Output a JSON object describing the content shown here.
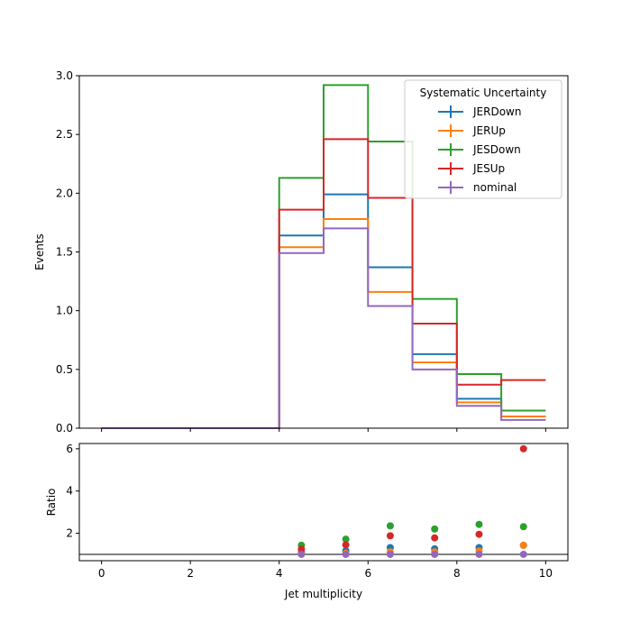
{
  "chart_data": [
    {
      "type": "line",
      "panel": "top",
      "drawstyle": "steps",
      "xlabel": "",
      "ylabel": "Events",
      "xlim": [
        -0.5,
        10.5
      ],
      "ylim": [
        0,
        3.0
      ],
      "yticks": [
        "0.0",
        "0.5",
        "1.0",
        "1.5",
        "2.0",
        "2.5",
        "3.0"
      ],
      "xticks": [
        0,
        2,
        4,
        6,
        8,
        10
      ],
      "bin_edges": [
        0,
        1,
        2,
        3,
        4,
        5,
        6,
        7,
        8,
        9,
        10
      ],
      "legend_title": "Systematic Uncertainty",
      "legend_position": "top-right",
      "series": [
        {
          "name": "JERDown",
          "color": "#1f77b4",
          "values": [
            0,
            0,
            0,
            0,
            1.64,
            1.99,
            1.37,
            0.63,
            0.25,
            0.1
          ]
        },
        {
          "name": "JERUp",
          "color": "#ff7f0e",
          "values": [
            0,
            0,
            0,
            0,
            1.54,
            1.78,
            1.16,
            0.56,
            0.22,
            0.1
          ]
        },
        {
          "name": "JESDown",
          "color": "#2ca02c",
          "values": [
            0,
            0,
            0,
            0,
            2.13,
            2.92,
            2.44,
            1.1,
            0.46,
            0.15
          ]
        },
        {
          "name": "JESUp",
          "color": "#d62728",
          "values": [
            0,
            0,
            0,
            0,
            1.86,
            2.46,
            1.96,
            0.89,
            0.37,
            0.41
          ]
        },
        {
          "name": "nominal",
          "color": "#9467bd",
          "values": [
            0,
            0,
            0,
            0,
            1.49,
            1.7,
            1.04,
            0.5,
            0.19,
            0.07
          ]
        }
      ]
    },
    {
      "type": "scatter",
      "panel": "bottom",
      "xlabel": "Jet multiplicity",
      "ylabel": "Ratio",
      "xlim": [
        -0.5,
        10.5
      ],
      "ylim": [
        0.7,
        6.25
      ],
      "yticks": [
        "2",
        "4",
        "6"
      ],
      "xticks": [
        "0",
        "2",
        "4",
        "6",
        "8",
        "10"
      ],
      "reference_line": 1,
      "x": [
        4.5,
        5.5,
        6.5,
        7.5,
        8.5,
        9.5
      ],
      "series": [
        {
          "name": "JERDown",
          "color": "#1f77b4",
          "values": [
            1.1,
            1.17,
            1.32,
            1.26,
            1.32,
            1.43
          ]
        },
        {
          "name": "JERUp",
          "color": "#ff7f0e",
          "values": [
            1.03,
            1.05,
            1.12,
            1.12,
            1.16,
            1.43
          ]
        },
        {
          "name": "JESDown",
          "color": "#2ca02c",
          "values": [
            1.43,
            1.72,
            2.35,
            2.2,
            2.42,
            2.31
          ]
        },
        {
          "name": "JESUp",
          "color": "#d62728",
          "values": [
            1.25,
            1.45,
            1.88,
            1.78,
            1.95,
            6.0
          ]
        },
        {
          "name": "nominal",
          "color": "#9467bd",
          "values": [
            1.0,
            1.0,
            1.0,
            1.0,
            1.0,
            1.0
          ]
        }
      ]
    }
  ]
}
